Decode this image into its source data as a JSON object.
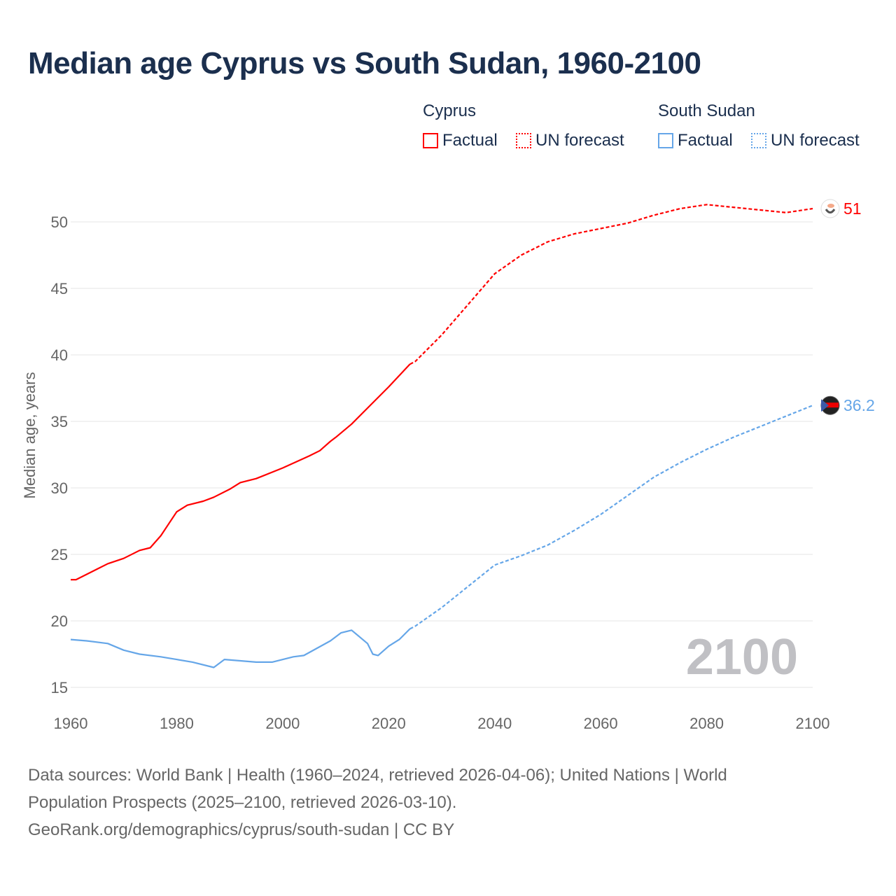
{
  "title": "Median age Cyprus vs South Sudan, 1960-2100",
  "legend": {
    "groups": [
      {
        "name": "Cyprus",
        "items": [
          "Factual",
          "UN forecast"
        ],
        "color": "#ff0000"
      },
      {
        "name": "South Sudan",
        "items": [
          "Factual",
          "UN forecast"
        ],
        "color": "#65a6e8"
      }
    ]
  },
  "year_watermark": "2100",
  "footer": {
    "line1": "Data sources: World Bank | Health (1960–2024, retrieved 2026-04-06); United Nations | World",
    "line2": "Population Prospects (2025–2100, retrieved 2026-03-10).",
    "line3": "GeoRank.org/demographics/cyprus/south-sudan | CC BY"
  },
  "chart_data": {
    "type": "line",
    "title": "Median age Cyprus vs South Sudan, 1960-2100",
    "xlabel": "",
    "ylabel": "Median age, years",
    "xlim": [
      1960,
      2100
    ],
    "ylim": [
      15,
      52
    ],
    "xticks": [
      1960,
      1980,
      2000,
      2020,
      2040,
      2060,
      2080,
      2100
    ],
    "yticks": [
      15,
      20,
      25,
      30,
      35,
      40,
      45,
      50
    ],
    "grid": true,
    "legend_position": "top-right",
    "series": [
      {
        "name": "Cyprus",
        "color": "#ff0000",
        "end_label": "51",
        "factual": [
          [
            1960,
            23.1
          ],
          [
            1961,
            23.1
          ],
          [
            1965,
            23.9
          ],
          [
            1967,
            24.3
          ],
          [
            1970,
            24.7
          ],
          [
            1973,
            25.3
          ],
          [
            1975,
            25.5
          ],
          [
            1977,
            26.4
          ],
          [
            1980,
            28.2
          ],
          [
            1982,
            28.7
          ],
          [
            1985,
            29.0
          ],
          [
            1987,
            29.3
          ],
          [
            1990,
            29.9
          ],
          [
            1992,
            30.4
          ],
          [
            1995,
            30.7
          ],
          [
            2000,
            31.5
          ],
          [
            2005,
            32.4
          ],
          [
            2007,
            32.8
          ],
          [
            2009,
            33.5
          ],
          [
            2010,
            33.8
          ],
          [
            2013,
            34.8
          ],
          [
            2016,
            36.0
          ],
          [
            2020,
            37.6
          ],
          [
            2024,
            39.3
          ]
        ],
        "forecast": [
          [
            2024,
            39.3
          ],
          [
            2025,
            39.5
          ],
          [
            2030,
            41.5
          ],
          [
            2035,
            43.8
          ],
          [
            2040,
            46.1
          ],
          [
            2045,
            47.5
          ],
          [
            2050,
            48.5
          ],
          [
            2055,
            49.1
          ],
          [
            2060,
            49.5
          ],
          [
            2065,
            49.9
          ],
          [
            2070,
            50.5
          ],
          [
            2075,
            51.0
          ],
          [
            2080,
            51.3
          ],
          [
            2085,
            51.1
          ],
          [
            2090,
            50.9
          ],
          [
            2095,
            50.7
          ],
          [
            2100,
            51.0
          ]
        ]
      },
      {
        "name": "South Sudan",
        "color": "#65a6e8",
        "end_label": "36.2",
        "factual": [
          [
            1960,
            18.6
          ],
          [
            1963,
            18.5
          ],
          [
            1967,
            18.3
          ],
          [
            1970,
            17.8
          ],
          [
            1973,
            17.5
          ],
          [
            1977,
            17.3
          ],
          [
            1980,
            17.1
          ],
          [
            1983,
            16.9
          ],
          [
            1987,
            16.5
          ],
          [
            1989,
            17.1
          ],
          [
            1992,
            17.0
          ],
          [
            1995,
            16.9
          ],
          [
            1998,
            16.9
          ],
          [
            2002,
            17.3
          ],
          [
            2004,
            17.4
          ],
          [
            2009,
            18.5
          ],
          [
            2011,
            19.1
          ],
          [
            2013,
            19.3
          ],
          [
            2016,
            18.3
          ],
          [
            2017,
            17.5
          ],
          [
            2018,
            17.4
          ],
          [
            2020,
            18.1
          ],
          [
            2022,
            18.6
          ],
          [
            2024,
            19.4
          ]
        ],
        "forecast": [
          [
            2024,
            19.4
          ],
          [
            2025,
            19.6
          ],
          [
            2030,
            21.0
          ],
          [
            2035,
            22.6
          ],
          [
            2040,
            24.2
          ],
          [
            2045,
            24.9
          ],
          [
            2050,
            25.7
          ],
          [
            2055,
            26.8
          ],
          [
            2060,
            28.0
          ],
          [
            2065,
            29.4
          ],
          [
            2070,
            30.8
          ],
          [
            2075,
            31.9
          ],
          [
            2080,
            32.9
          ],
          [
            2085,
            33.8
          ],
          [
            2090,
            34.6
          ],
          [
            2095,
            35.4
          ],
          [
            2100,
            36.2
          ]
        ]
      }
    ]
  }
}
